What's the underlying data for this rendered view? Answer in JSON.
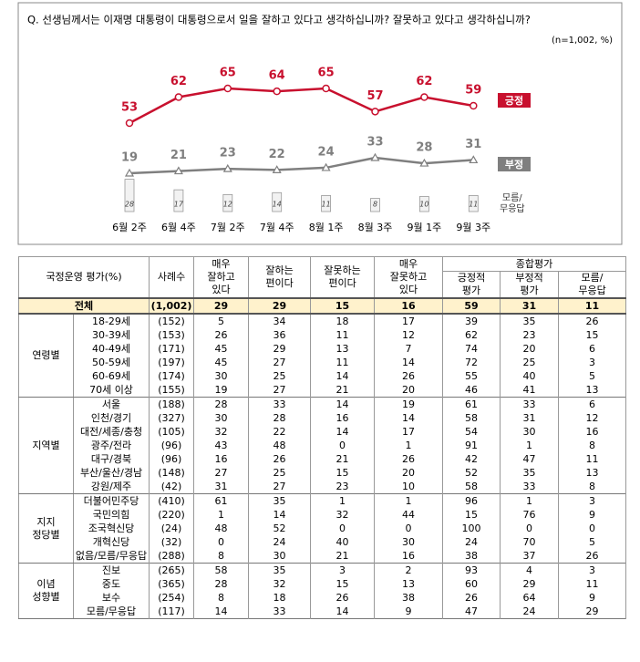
{
  "chart_data": {
    "type": "line",
    "title": "Q. 선생님께서는 이재명 대통령이 대통령으로서 일을 잘하고 있다고 생각하십니까? 잘못하고 있다고 생각하십니까?",
    "note": "(n=1,002, %)",
    "categories": [
      "6월 2주",
      "6월 4주",
      "7월 2주",
      "7월 4주",
      "8월 1주",
      "8월 3주",
      "9월 1주",
      "9월 3주"
    ],
    "series": [
      {
        "name": "긍정",
        "color": "#c8102e",
        "values": [
          53,
          62,
          65,
          64,
          65,
          57,
          62,
          59
        ]
      },
      {
        "name": "부정",
        "color": "#7f7f7f",
        "values": [
          19,
          21,
          23,
          22,
          24,
          33,
          28,
          31
        ]
      },
      {
        "name": "모름/\n무응답",
        "color": "#d9d9d9",
        "type": "bar",
        "values": [
          28,
          17,
          12,
          14,
          11,
          8,
          10,
          11
        ]
      }
    ]
  },
  "table": {
    "header": {
      "label": "국정운영 평가(%)",
      "n": "사례수",
      "cols": [
        "매우\n잘하고\n있다",
        "잘하는\n편이다",
        "잘못하는\n편이다",
        "매우\n잘못하고\n있다"
      ],
      "group": "종합평가",
      "subcols": [
        "긍정적\n평가",
        "부정적\n평가",
        "모름/\n무응답"
      ]
    },
    "total": {
      "label": "전체",
      "n": "(1,002)",
      "values": [
        29,
        29,
        15,
        16,
        59,
        31,
        11
      ]
    },
    "groups": [
      {
        "label": "연령별",
        "rows": [
          {
            "label": "18-29세",
            "n": "(152)",
            "values": [
              5,
              34,
              18,
              17,
              39,
              35,
              26
            ]
          },
          {
            "label": "30-39세",
            "n": "(153)",
            "values": [
              26,
              36,
              11,
              12,
              62,
              23,
              15
            ]
          },
          {
            "label": "40-49세",
            "n": "(171)",
            "values": [
              45,
              29,
              13,
              7,
              74,
              20,
              6
            ]
          },
          {
            "label": "50-59세",
            "n": "(197)",
            "values": [
              45,
              27,
              11,
              14,
              72,
              25,
              3
            ]
          },
          {
            "label": "60-69세",
            "n": "(174)",
            "values": [
              30,
              25,
              14,
              26,
              55,
              40,
              5
            ]
          },
          {
            "label": "70세 이상",
            "n": "(155)",
            "values": [
              19,
              27,
              21,
              20,
              46,
              41,
              13
            ]
          }
        ]
      },
      {
        "label": "지역별",
        "rows": [
          {
            "label": "서울",
            "n": "(188)",
            "values": [
              28,
              33,
              14,
              19,
              61,
              33,
              6
            ]
          },
          {
            "label": "인천/경기",
            "n": "(327)",
            "values": [
              30,
              28,
              16,
              14,
              58,
              31,
              12
            ]
          },
          {
            "label": "대전/세종/충청",
            "n": "(105)",
            "values": [
              32,
              22,
              14,
              17,
              54,
              30,
              16
            ]
          },
          {
            "label": "광주/전라",
            "n": "(96)",
            "values": [
              43,
              48,
              0,
              1,
              91,
              1,
              8
            ]
          },
          {
            "label": "대구/경북",
            "n": "(96)",
            "values": [
              16,
              26,
              21,
              26,
              42,
              47,
              11
            ]
          },
          {
            "label": "부산/울산/경남",
            "n": "(148)",
            "values": [
              27,
              25,
              15,
              20,
              52,
              35,
              13
            ]
          },
          {
            "label": "강원/제주",
            "n": "(42)",
            "values": [
              31,
              27,
              23,
              10,
              58,
              33,
              8
            ]
          }
        ]
      },
      {
        "label": "지지\n정당별",
        "rows": [
          {
            "label": "더불어민주당",
            "n": "(410)",
            "values": [
              61,
              35,
              1,
              1,
              96,
              1,
              3
            ]
          },
          {
            "label": "국민의힘",
            "n": "(220)",
            "values": [
              1,
              14,
              32,
              44,
              15,
              76,
              9
            ]
          },
          {
            "label": "조국혁신당",
            "n": "(24)",
            "values": [
              48,
              52,
              0,
              0,
              100,
              0,
              0
            ]
          },
          {
            "label": "개혁신당",
            "n": "(32)",
            "values": [
              0,
              24,
              40,
              30,
              24,
              70,
              5
            ]
          },
          {
            "label": "없음/모름/무응답",
            "n": "(288)",
            "values": [
              8,
              30,
              21,
              16,
              38,
              37,
              26
            ]
          }
        ]
      },
      {
        "label": "이념\n성향별",
        "rows": [
          {
            "label": "진보",
            "n": "(265)",
            "values": [
              58,
              35,
              3,
              2,
              93,
              4,
              3
            ]
          },
          {
            "label": "중도",
            "n": "(365)",
            "values": [
              28,
              32,
              15,
              13,
              60,
              29,
              11
            ]
          },
          {
            "label": "보수",
            "n": "(254)",
            "values": [
              8,
              18,
              26,
              38,
              26,
              64,
              9
            ]
          },
          {
            "label": "모름/무응답",
            "n": "(117)",
            "values": [
              14,
              33,
              14,
              9,
              47,
              24,
              29
            ]
          }
        ]
      }
    ]
  }
}
